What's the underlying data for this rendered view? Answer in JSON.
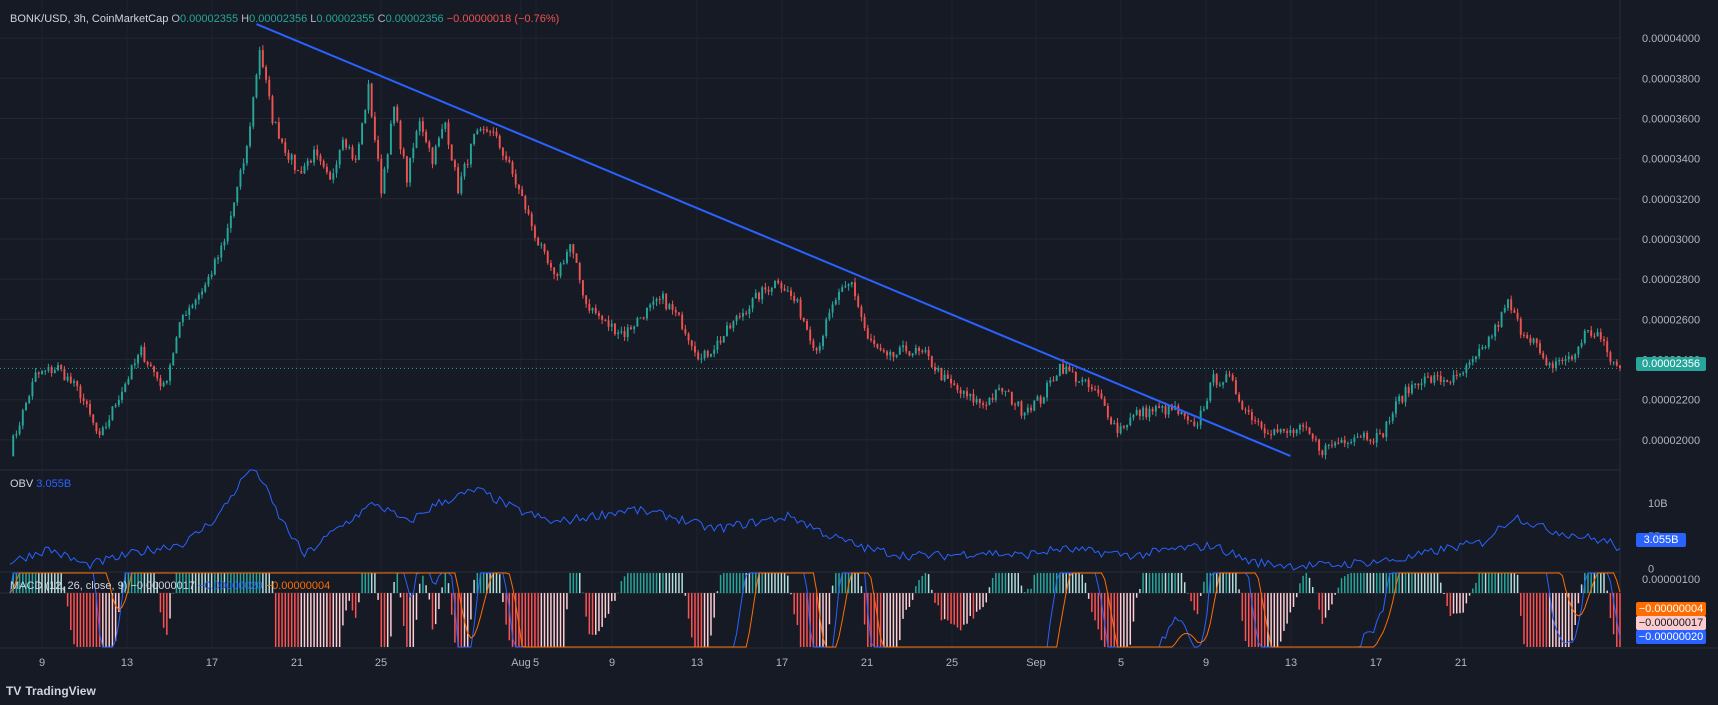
{
  "header": {
    "symbol": "BONK/USD, 3h, CoinMarketCap",
    "open_label": "O",
    "open": "0.00002355",
    "high_label": "H",
    "high": "0.00002356",
    "low_label": "L",
    "low": "0.00002355",
    "close_label": "C",
    "close": "0.00002356",
    "change": "−0.00000018 (−0.76%)"
  },
  "obv_header": {
    "label": "OBV",
    "value": "3.055B"
  },
  "macd_header": {
    "label": "MACD (12, 26, close, 9)",
    "histogram": "−0.00000017",
    "macd": "−0.00000020",
    "signal": "−0.00000004"
  },
  "price_tag": "0.00002356",
  "obv_tag": "3.055B",
  "macd_tags": [
    "−0.00000004",
    "−0.00000017",
    "−0.00000020"
  ],
  "branding": "TradingView",
  "colors": {
    "up": "#26a69a",
    "down": "#ef5350",
    "trendline": "#2962ff",
    "macd": "#2962ff",
    "signal": "#ff6d00",
    "obv": "#2962ff"
  },
  "chart_data": [
    {
      "type": "candlestick",
      "title": "",
      "ylim": [
        1.85e-05,
        4.1e-05
      ],
      "yticks": [
        "0.00004000",
        "0.00003800",
        "0.00003600",
        "0.00003400",
        "0.00003200",
        "0.00003000",
        "0.00002800",
        "0.00002600",
        "0.00002400",
        "0.00002200",
        "0.00002000"
      ],
      "ytick_values": [
        4e-05,
        3.8e-05,
        3.6e-05,
        3.4e-05,
        3.2e-05,
        3e-05,
        2.8e-05,
        2.6e-05,
        2.4e-05,
        2.2e-05,
        2e-05
      ],
      "xticks": [
        "9",
        "13",
        "17",
        "21",
        "25",
        "Aug",
        "5",
        "9",
        "13",
        "17",
        "21",
        "25",
        "Sep",
        "5",
        "9",
        "13",
        "17",
        "21"
      ],
      "last_price": 2.356e-05,
      "close_path": [
        [
          0,
          1.95e-05
        ],
        [
          8,
          2.32e-05
        ],
        [
          15,
          2.36e-05
        ],
        [
          22,
          2.23e-05
        ],
        [
          28,
          2e-05
        ],
        [
          34,
          2.22e-05
        ],
        [
          41,
          2.44e-05
        ],
        [
          48,
          2.26e-05
        ],
        [
          54,
          2.62e-05
        ],
        [
          61,
          2.77e-05
        ],
        [
          67,
          2.98e-05
        ],
        [
          74,
          3.45e-05
        ],
        [
          78,
          3.95e-05
        ],
        [
          82,
          3.6e-05
        ],
        [
          86,
          3.45e-05
        ],
        [
          90,
          3.33e-05
        ],
        [
          95,
          3.42e-05
        ],
        [
          100,
          3.28e-05
        ],
        [
          104,
          3.52e-05
        ],
        [
          108,
          3.38e-05
        ],
        [
          112,
          3.75e-05
        ],
        [
          116,
          3.25e-05
        ],
        [
          120,
          3.65e-05
        ],
        [
          124,
          3.3e-05
        ],
        [
          128,
          3.6e-05
        ],
        [
          132,
          3.4e-05
        ],
        [
          136,
          3.58e-05
        ],
        [
          140,
          3.25e-05
        ],
        [
          145,
          3.5e-05
        ],
        [
          150,
          3.55e-05
        ],
        [
          155,
          3.4e-05
        ],
        [
          160,
          3.2e-05
        ],
        [
          165,
          2.98e-05
        ],
        [
          170,
          2.8e-05
        ],
        [
          175,
          2.97e-05
        ],
        [
          180,
          2.68e-05
        ],
        [
          186,
          2.58e-05
        ],
        [
          192,
          2.53e-05
        ],
        [
          198,
          2.63e-05
        ],
        [
          204,
          2.7e-05
        ],
        [
          210,
          2.58e-05
        ],
        [
          216,
          2.4e-05
        ],
        [
          222,
          2.5e-05
        ],
        [
          228,
          2.62e-05
        ],
        [
          234,
          2.72e-05
        ],
        [
          240,
          2.8e-05
        ],
        [
          246,
          2.67e-05
        ],
        [
          252,
          2.45e-05
        ],
        [
          258,
          2.7e-05
        ],
        [
          263,
          2.78e-05
        ],
        [
          268,
          2.5e-05
        ],
        [
          274,
          2.4e-05
        ],
        [
          280,
          2.45e-05
        ],
        [
          286,
          2.42e-05
        ],
        [
          292,
          2.3e-05
        ],
        [
          298,
          2.22e-05
        ],
        [
          304,
          2.18e-05
        ],
        [
          310,
          2.25e-05
        ],
        [
          316,
          2.15e-05
        ],
        [
          322,
          2.2e-05
        ],
        [
          328,
          2.37e-05
        ],
        [
          334,
          2.3e-05
        ],
        [
          340,
          2.22e-05
        ],
        [
          346,
          2.05e-05
        ],
        [
          352,
          2.13e-05
        ],
        [
          358,
          2.15e-05
        ],
        [
          364,
          2.15e-05
        ],
        [
          370,
          2.05e-05
        ],
        [
          376,
          2.3e-05
        ],
        [
          381,
          2.3e-05
        ],
        [
          386,
          2.15e-05
        ],
        [
          392,
          2.06e-05
        ],
        [
          398,
          2.03e-05
        ],
        [
          404,
          2.05e-05
        ],
        [
          410,
          1.95e-05
        ],
        [
          416,
          2e-05
        ],
        [
          422,
          2.03e-05
        ],
        [
          428,
          2.01e-05
        ],
        [
          434,
          2.2e-05
        ],
        [
          440,
          2.3e-05
        ],
        [
          446,
          2.3e-05
        ],
        [
          452,
          2.3e-05
        ],
        [
          458,
          2.4e-05
        ],
        [
          464,
          2.55e-05
        ],
        [
          468,
          2.68e-05
        ],
        [
          472,
          2.55e-05
        ],
        [
          476,
          2.5e-05
        ],
        [
          480,
          2.35e-05
        ],
        [
          484,
          2.4e-05
        ],
        [
          488,
          2.4e-05
        ],
        [
          492,
          2.53e-05
        ],
        [
          496,
          2.53e-05
        ],
        [
          500,
          2.4e-05
        ],
        [
          503,
          2.35e-05
        ]
      ]
    },
    {
      "type": "line",
      "title": "OBV",
      "ylim": [
        -0.5,
        15
      ],
      "yticks": [
        "10B",
        "5B",
        "0"
      ],
      "ytick_values": [
        10,
        5,
        0
      ],
      "last": 3.055,
      "path": [
        [
          0,
          1
        ],
        [
          12,
          3
        ],
        [
          24,
          0.5
        ],
        [
          40,
          2.5
        ],
        [
          55,
          4
        ],
        [
          65,
          8
        ],
        [
          76,
          16
        ],
        [
          84,
          8
        ],
        [
          92,
          2
        ],
        [
          102,
          6
        ],
        [
          114,
          10
        ],
        [
          124,
          7
        ],
        [
          134,
          10
        ],
        [
          146,
          12
        ],
        [
          158,
          9
        ],
        [
          170,
          7
        ],
        [
          182,
          8
        ],
        [
          194,
          9
        ],
        [
          206,
          8
        ],
        [
          220,
          6
        ],
        [
          232,
          7
        ],
        [
          244,
          8
        ],
        [
          256,
          5
        ],
        [
          268,
          3
        ],
        [
          280,
          2
        ],
        [
          292,
          2
        ],
        [
          304,
          2.5
        ],
        [
          316,
          2
        ],
        [
          328,
          3
        ],
        [
          340,
          2.5
        ],
        [
          352,
          2
        ],
        [
          364,
          3
        ],
        [
          376,
          3.5
        ],
        [
          388,
          1
        ],
        [
          400,
          0.5
        ],
        [
          412,
          0.5
        ],
        [
          424,
          1
        ],
        [
          436,
          1.5
        ],
        [
          448,
          3
        ],
        [
          460,
          4
        ],
        [
          470,
          8
        ],
        [
          480,
          6
        ],
        [
          490,
          5
        ],
        [
          500,
          4
        ],
        [
          503,
          3.055
        ]
      ]
    },
    {
      "type": "macd",
      "title": "MACD (12, 26, close, 9)",
      "ylim": [
        -3e-07,
        1.15e-07
      ],
      "yticks": [
        "0.00000100"
      ],
      "ytick_values": [
        1e-07
      ],
      "histogram_last": -1.7e-07,
      "macd_last": -2e-07,
      "signal_last": -4e-08
    }
  ]
}
